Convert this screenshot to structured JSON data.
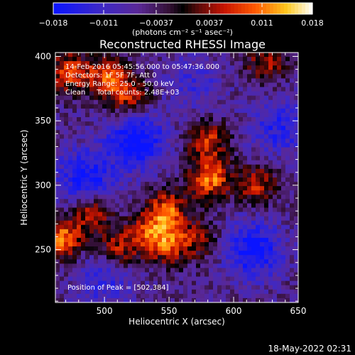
{
  "chart_data": {
    "type": "heatmap",
    "title": "Reconstructed RHESSI Image",
    "xlabel": "Heliocentric X (arcsec)",
    "ylabel": "Heliocentric Y (arcsec)",
    "xlim": [
      462,
      650
    ],
    "ylim": [
      209,
      403
    ],
    "x_ticks": [
      500,
      550,
      600,
      650
    ],
    "y_ticks": [
      250,
      300,
      350,
      400
    ],
    "colorbar": {
      "label": "(photons cm⁻² s⁻¹ asec⁻²)",
      "range": [
        -0.018,
        0.018
      ],
      "tick_values": [
        -0.018,
        -0.011,
        -0.0037,
        0.0037,
        0.011,
        0.018
      ],
      "tick_labels": [
        "−0.018",
        "−0.011",
        "−0.0037",
        "0.0037",
        "0.011",
        "0.018"
      ]
    },
    "annotations": [
      "14-Feb-2016 05:45:56.000 to 05:47:36.000",
      "Detectors: 1F 5F 7F, Att 0",
      "Energy Range: 25.0 - 50.0 keV",
      "Clean     Total counts: 2.48E+03"
    ],
    "peak_label": "Position of Peak = [502,384]",
    "peak": [
      502,
      384
    ],
    "sources": [
      {
        "x": 468,
        "y": 258,
        "value": 0.016
      },
      {
        "x": 490,
        "y": 280,
        "value": 0.012
      },
      {
        "x": 472,
        "y": 388,
        "value": 0.013
      },
      {
        "x": 502,
        "y": 384,
        "value": 0.014
      },
      {
        "x": 520,
        "y": 368,
        "value": 0.012
      },
      {
        "x": 548,
        "y": 280,
        "value": 0.015
      },
      {
        "x": 550,
        "y": 255,
        "value": 0.013
      },
      {
        "x": 532,
        "y": 262,
        "value": 0.01
      },
      {
        "x": 582,
        "y": 305,
        "value": 0.016
      },
      {
        "x": 580,
        "y": 335,
        "value": 0.012
      },
      {
        "x": 618,
        "y": 300,
        "value": 0.011
      },
      {
        "x": 625,
        "y": 395,
        "value": 0.01
      },
      {
        "x": 510,
        "y": 250,
        "value": 0.011
      },
      {
        "x": 575,
        "y": 258,
        "value": 0.008
      }
    ],
    "sinks": [
      {
        "x": 525,
        "y": 335,
        "value": -0.014
      },
      {
        "x": 485,
        "y": 305,
        "value": -0.012
      },
      {
        "x": 615,
        "y": 250,
        "value": -0.013
      },
      {
        "x": 635,
        "y": 345,
        "value": -0.009
      },
      {
        "x": 500,
        "y": 228,
        "value": -0.008
      },
      {
        "x": 570,
        "y": 380,
        "value": -0.006
      }
    ]
  },
  "footer": {
    "timestamp": "18-May-2022 02:31"
  }
}
